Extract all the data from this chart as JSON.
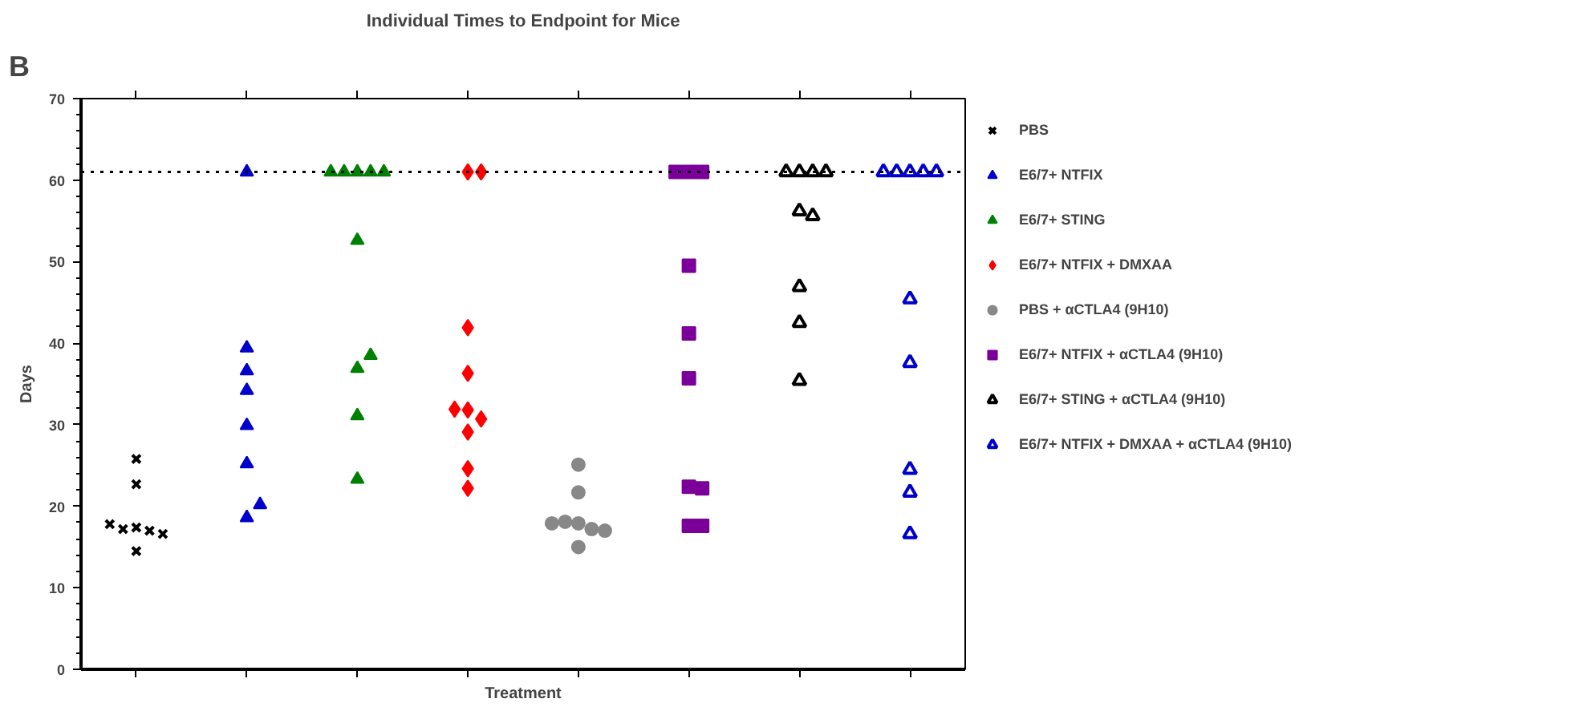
{
  "chart_data": {
    "type": "scatter",
    "title": "Individual Times to Endpoint for Mice",
    "xlabel": "Treatment",
    "ylabel": "Days",
    "annotations": [
      "B"
    ],
    "categories": [
      null,
      null,
      null,
      null,
      null,
      null,
      null,
      null
    ],
    "ylim": [
      0,
      70
    ],
    "yticks": [
      0,
      10,
      20,
      30,
      40,
      50,
      60,
      70
    ],
    "grid": false,
    "legend": "right",
    "ref_lines": [
      {
        "axis": "y",
        "value": 61,
        "label": null,
        "color": "#000000",
        "line_style": "dotted"
      }
    ],
    "series": [
      {
        "name": "PBS",
        "color": "#000000",
        "marker": "x",
        "values": [
          17.4,
          null,
          null,
          null,
          null,
          null,
          null,
          null
        ]
      },
      {
        "color": "#000000",
        "marker": "x",
        "values": [
          17.0,
          null,
          null,
          null,
          null,
          null,
          null,
          null
        ]
      },
      {
        "color": "#000000",
        "marker": "x",
        "values": [
          25.8,
          null,
          null,
          null,
          null,
          null,
          null,
          null
        ]
      },
      {
        "color": "#000000",
        "marker": "x",
        "values": [
          22.7,
          null,
          null,
          null,
          null,
          null,
          null,
          null
        ]
      },
      {
        "color": "#000000",
        "marker": "x",
        "values": [
          17.2,
          null,
          null,
          null,
          null,
          null,
          null,
          null
        ]
      },
      {
        "color": "#000000",
        "marker": "x",
        "values": [
          14.5,
          null,
          null,
          null,
          null,
          null,
          null,
          null
        ]
      },
      {
        "color": "#000000",
        "marker": "x",
        "values": [
          16.6,
          null,
          null,
          null,
          null,
          null,
          null,
          null
        ]
      },
      {
        "color": "#000000",
        "marker": "x",
        "values": [
          17.8,
          null,
          null,
          null,
          null,
          null,
          null,
          null
        ]
      },
      {
        "name": "E6/7+ NTFIX",
        "color": "#0000cc",
        "marker": "triangle",
        "values": [
          null,
          61,
          null,
          null,
          null,
          null,
          null,
          null
        ]
      },
      {
        "color": "#0000cc",
        "marker": "triangle",
        "values": [
          null,
          36.6,
          null,
          null,
          null,
          null,
          null,
          null
        ]
      },
      {
        "color": "#0000cc",
        "marker": "triangle",
        "values": [
          null,
          39.4,
          null,
          null,
          null,
          null,
          null,
          null
        ]
      },
      {
        "color": "#0000cc",
        "marker": "triangle",
        "values": [
          null,
          34.2,
          null,
          null,
          null,
          null,
          null,
          null
        ]
      },
      {
        "color": "#0000cc",
        "marker": "triangle",
        "values": [
          null,
          29.9,
          null,
          null,
          null,
          null,
          null,
          null
        ]
      },
      {
        "color": "#0000cc",
        "marker": "triangle",
        "values": [
          null,
          25.2,
          null,
          null,
          null,
          null,
          null,
          null
        ]
      },
      {
        "color": "#0000cc",
        "marker": "triangle",
        "values": [
          null,
          18.6,
          null,
          null,
          null,
          null,
          null,
          null
        ]
      },
      {
        "color": "#0000cc",
        "marker": "triangle",
        "values": [
          null,
          20.2,
          null,
          null,
          null,
          null,
          null,
          null
        ]
      },
      {
        "name": "E6/7+ STING",
        "color": "#008000",
        "marker": "triangle",
        "values": [
          null,
          null,
          61,
          null,
          null,
          null,
          null,
          null
        ]
      },
      {
        "color": "#008000",
        "marker": "triangle",
        "values": [
          null,
          null,
          61,
          null,
          null,
          null,
          null,
          null
        ]
      },
      {
        "color": "#008000",
        "marker": "triangle",
        "values": [
          null,
          null,
          61,
          null,
          null,
          null,
          null,
          null
        ]
      },
      {
        "color": "#008000",
        "marker": "triangle",
        "values": [
          null,
          null,
          61,
          null,
          null,
          null,
          null,
          null
        ]
      },
      {
        "color": "#008000",
        "marker": "triangle",
        "values": [
          null,
          null,
          61,
          null,
          null,
          null,
          null,
          null
        ]
      },
      {
        "color": "#008000",
        "marker": "triangle",
        "values": [
          null,
          null,
          52.6,
          null,
          null,
          null,
          null,
          null
        ]
      },
      {
        "color": "#008000",
        "marker": "triangle",
        "values": [
          null,
          null,
          36.9,
          null,
          null,
          null,
          null,
          null
        ]
      },
      {
        "color": "#008000",
        "marker": "triangle",
        "values": [
          null,
          null,
          38.5,
          null,
          null,
          null,
          null,
          null
        ]
      },
      {
        "color": "#008000",
        "marker": "triangle",
        "values": [
          null,
          null,
          31.1,
          null,
          null,
          null,
          null,
          null
        ]
      },
      {
        "color": "#008000",
        "marker": "triangle",
        "values": [
          null,
          null,
          23.3,
          null,
          null,
          null,
          null,
          null
        ]
      },
      {
        "name": "E6/7+ NTFIX + DMXAA",
        "color": "#ff0000",
        "marker": "diamond",
        "values": [
          null,
          null,
          null,
          61,
          null,
          null,
          null,
          null
        ]
      },
      {
        "color": "#ff0000",
        "marker": "diamond",
        "values": [
          null,
          null,
          null,
          61,
          null,
          null,
          null,
          null
        ]
      },
      {
        "color": "#ff0000",
        "marker": "diamond",
        "values": [
          null,
          null,
          null,
          41.9,
          null,
          null,
          null,
          null
        ]
      },
      {
        "color": "#ff0000",
        "marker": "diamond",
        "values": [
          null,
          null,
          null,
          36.3,
          null,
          null,
          null,
          null
        ]
      },
      {
        "color": "#ff0000",
        "marker": "diamond",
        "values": [
          null,
          null,
          null,
          31.8,
          null,
          null,
          null,
          null
        ]
      },
      {
        "color": "#ff0000",
        "marker": "diamond",
        "values": [
          null,
          null,
          null,
          30.7,
          null,
          null,
          null,
          null
        ]
      },
      {
        "color": "#ff0000",
        "marker": "diamond",
        "values": [
          null,
          null,
          null,
          31.9,
          null,
          null,
          null,
          null
        ]
      },
      {
        "color": "#ff0000",
        "marker": "diamond",
        "values": [
          null,
          null,
          null,
          29.1,
          null,
          null,
          null,
          null
        ]
      },
      {
        "color": "#ff0000",
        "marker": "diamond",
        "values": [
          null,
          null,
          null,
          24.6,
          null,
          null,
          null,
          null
        ]
      },
      {
        "color": "#ff0000",
        "marker": "diamond",
        "values": [
          null,
          null,
          null,
          22.2,
          null,
          null,
          null,
          null
        ]
      },
      {
        "name": "PBS + αCTLA4 (9H10)",
        "color": "#888888",
        "marker": "circle",
        "values": [
          null,
          null,
          null,
          null,
          25.1,
          null,
          null,
          null
        ]
      },
      {
        "color": "#888888",
        "marker": "circle",
        "values": [
          null,
          null,
          null,
          null,
          21.7,
          null,
          null,
          null
        ]
      },
      {
        "color": "#888888",
        "marker": "circle",
        "values": [
          null,
          null,
          null,
          null,
          17.9,
          null,
          null,
          null
        ]
      },
      {
        "color": "#888888",
        "marker": "circle",
        "values": [
          null,
          null,
          null,
          null,
          17.2,
          null,
          null,
          null
        ]
      },
      {
        "color": "#888888",
        "marker": "circle",
        "values": [
          null,
          null,
          null,
          null,
          18.1,
          null,
          null,
          null
        ]
      },
      {
        "color": "#888888",
        "marker": "circle",
        "values": [
          null,
          null,
          null,
          null,
          17.0,
          null,
          null,
          null
        ]
      },
      {
        "color": "#888888",
        "marker": "circle",
        "values": [
          null,
          null,
          null,
          null,
          17.9,
          null,
          null,
          null
        ]
      },
      {
        "color": "#888888",
        "marker": "circle",
        "values": [
          null,
          null,
          null,
          null,
          15.0,
          null,
          null,
          null
        ]
      },
      {
        "name": "E6/7+ NTFIX + αCTLA4 (9H10)",
        "color": "#7b0099",
        "marker": "square",
        "values": [
          null,
          null,
          null,
          null,
          null,
          61,
          null,
          null
        ]
      },
      {
        "color": "#7b0099",
        "marker": "square",
        "values": [
          null,
          null,
          null,
          null,
          null,
          61,
          null,
          null
        ]
      },
      {
        "color": "#7b0099",
        "marker": "square",
        "values": [
          null,
          null,
          null,
          null,
          null,
          61,
          null,
          null
        ]
      },
      {
        "color": "#7b0099",
        "marker": "square",
        "values": [
          null,
          null,
          null,
          null,
          null,
          49.5,
          null,
          null
        ]
      },
      {
        "color": "#7b0099",
        "marker": "square",
        "values": [
          null,
          null,
          null,
          null,
          null,
          41.2,
          null,
          null
        ]
      },
      {
        "color": "#7b0099",
        "marker": "square",
        "values": [
          null,
          null,
          null,
          null,
          null,
          35.7,
          null,
          null
        ]
      },
      {
        "color": "#7b0099",
        "marker": "square",
        "values": [
          null,
          null,
          null,
          null,
          null,
          22.4,
          null,
          null
        ]
      },
      {
        "color": "#7b0099",
        "marker": "square",
        "values": [
          null,
          null,
          null,
          null,
          null,
          22.2,
          null,
          null
        ]
      },
      {
        "color": "#7b0099",
        "marker": "square",
        "values": [
          null,
          null,
          null,
          null,
          null,
          17.6,
          null,
          null
        ]
      },
      {
        "color": "#7b0099",
        "marker": "square",
        "values": [
          null,
          null,
          null,
          null,
          null,
          17.6,
          null,
          null
        ]
      },
      {
        "name": "E6/7+ STING + αCTLA4 (9H10)",
        "color": "#000000",
        "marker": "triangle_open",
        "values": [
          null,
          null,
          null,
          null,
          null,
          null,
          61,
          null
        ]
      },
      {
        "color": "#000000",
        "marker": "triangle_open",
        "values": [
          null,
          null,
          null,
          null,
          null,
          null,
          61,
          null
        ]
      },
      {
        "color": "#000000",
        "marker": "triangle_open",
        "values": [
          null,
          null,
          null,
          null,
          null,
          null,
          61,
          null
        ]
      },
      {
        "color": "#000000",
        "marker": "triangle_open",
        "values": [
          null,
          null,
          null,
          null,
          null,
          null,
          61,
          null
        ]
      },
      {
        "color": "#000000",
        "marker": "triangle_open",
        "values": [
          null,
          null,
          null,
          null,
          null,
          null,
          56.2,
          null
        ]
      },
      {
        "color": "#000000",
        "marker": "triangle_open",
        "values": [
          null,
          null,
          null,
          null,
          null,
          null,
          55.6,
          null
        ]
      },
      {
        "color": "#000000",
        "marker": "triangle_open",
        "values": [
          null,
          null,
          null,
          null,
          null,
          null,
          46.9,
          null
        ]
      },
      {
        "color": "#000000",
        "marker": "triangle_open",
        "values": [
          null,
          null,
          null,
          null,
          null,
          null,
          42.5,
          null
        ]
      },
      {
        "color": "#000000",
        "marker": "triangle_open",
        "values": [
          null,
          null,
          null,
          null,
          null,
          null,
          35.4,
          null
        ]
      },
      {
        "name": "E6/7+ NTFIX + DMXAA + αCTLA4 (9H10)",
        "color": "#0000cc",
        "marker": "triangle_open",
        "values": [
          null,
          null,
          null,
          null,
          null,
          null,
          null,
          61
        ]
      },
      {
        "color": "#0000cc",
        "marker": "triangle_open",
        "values": [
          null,
          null,
          null,
          null,
          null,
          null,
          null,
          61
        ]
      },
      {
        "color": "#0000cc",
        "marker": "triangle_open",
        "values": [
          null,
          null,
          null,
          null,
          null,
          null,
          null,
          61
        ]
      },
      {
        "color": "#0000cc",
        "marker": "triangle_open",
        "values": [
          null,
          null,
          null,
          null,
          null,
          null,
          null,
          61
        ]
      },
      {
        "color": "#0000cc",
        "marker": "triangle_open",
        "values": [
          null,
          null,
          null,
          null,
          null,
          null,
          null,
          61
        ]
      },
      {
        "color": "#0000cc",
        "marker": "triangle_open",
        "values": [
          null,
          null,
          null,
          null,
          null,
          null,
          null,
          45.4
        ]
      },
      {
        "color": "#0000cc",
        "marker": "triangle_open",
        "values": [
          null,
          null,
          null,
          null,
          null,
          null,
          null,
          37.6
        ]
      },
      {
        "color": "#0000cc",
        "marker": "triangle_open",
        "values": [
          null,
          null,
          null,
          null,
          null,
          null,
          null,
          24.5
        ]
      },
      {
        "color": "#0000cc",
        "marker": "triangle_open",
        "values": [
          null,
          null,
          null,
          null,
          null,
          null,
          null,
          21.7
        ]
      },
      {
        "color": "#0000cc",
        "marker": "triangle_open",
        "values": [
          null,
          null,
          null,
          null,
          null,
          null,
          null,
          16.6
        ]
      }
    ]
  }
}
